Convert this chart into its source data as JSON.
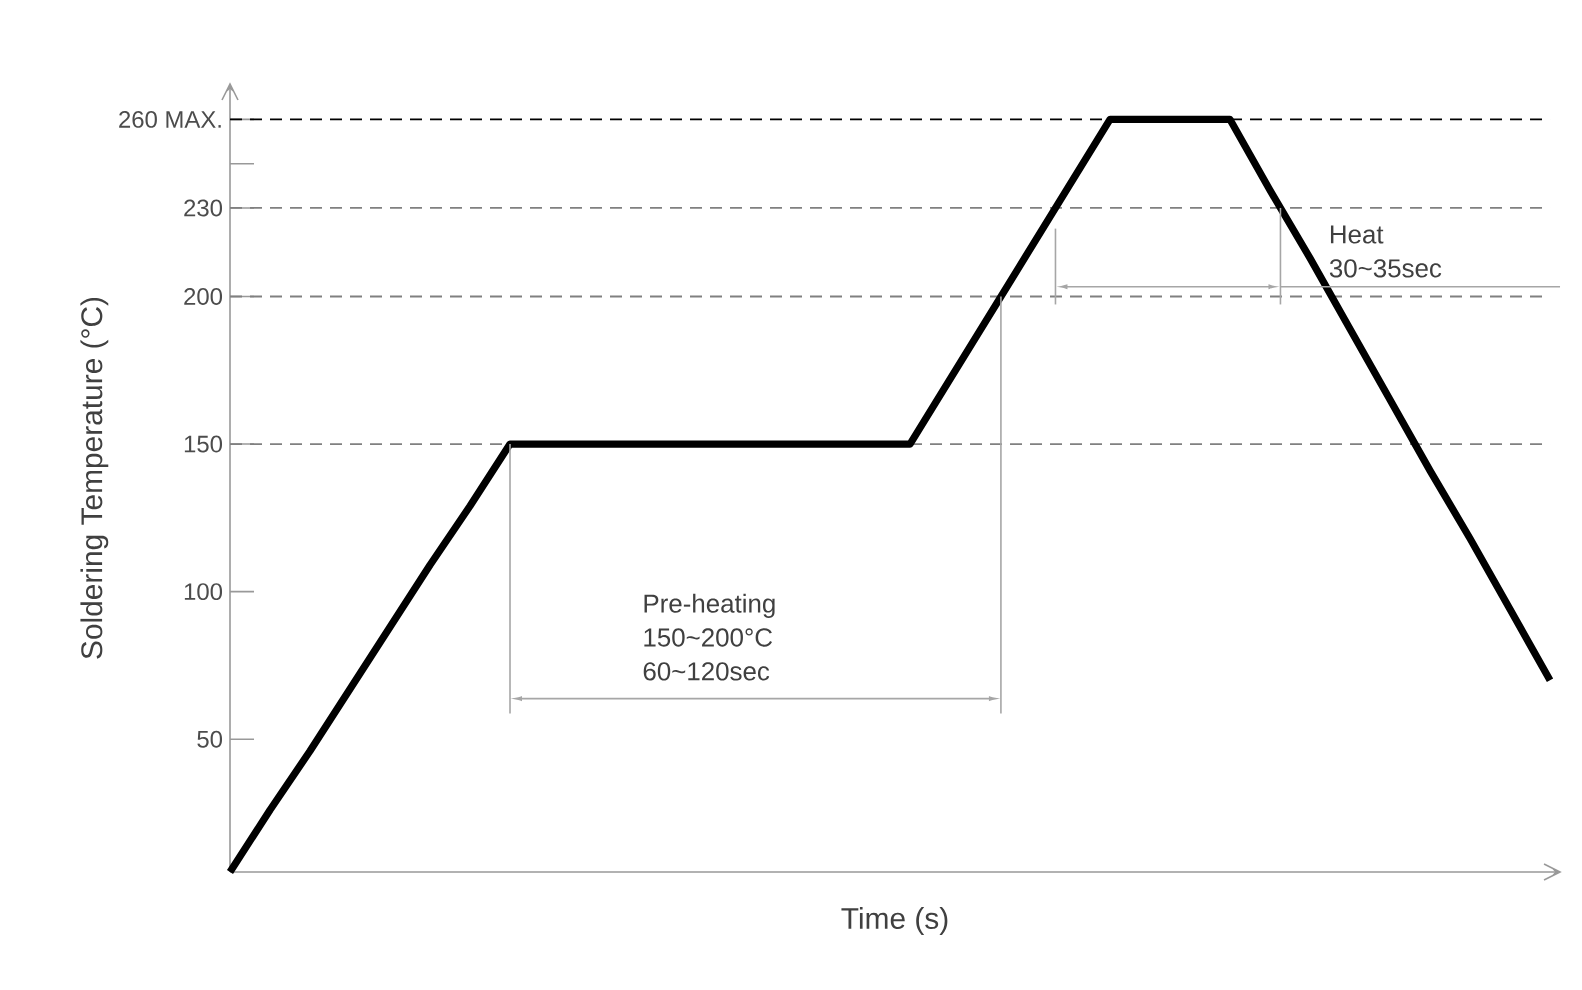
{
  "chart_data": {
    "type": "line",
    "xlabel": "Time (s)",
    "ylabel": "Soldering Temperature (°C)",
    "categories": [
      null,
      null,
      null,
      null,
      null,
      null,
      null,
      null,
      null,
      null,
      null,
      null,
      null,
      null,
      null,
      null,
      null,
      null,
      null,
      null,
      null,
      null,
      null,
      null,
      null,
      null,
      null,
      null,
      null,
      null,
      null,
      null,
      null,
      null
    ],
    "series": [
      {
        "color": "#000000",
        "values": [
          5,
          26,
          46,
          67,
          88,
          109,
          129,
          150,
          150,
          150,
          150,
          150,
          150,
          150,
          150,
          150,
          150,
          150,
          172,
          194,
          216,
          238,
          260,
          260,
          260,
          260,
          236,
          213,
          189,
          165,
          141,
          118,
          94,
          70
        ]
      }
    ],
    "ylim": [
      5,
      272
    ],
    "yticks": [
      50,
      100,
      150,
      200,
      230,
      {
        "value": 245,
        "label": null
      },
      {
        "value": 260,
        "label": "260  MAX."
      }
    ],
    "tick_labels": "y",
    "marker": "none",
    "line_style": "solid",
    "grid": false,
    "ref_lines": [
      {
        "axis": "y",
        "value": 150,
        "color": "#808080",
        "line_style": "dashed"
      },
      {
        "axis": "y",
        "value": 200,
        "color": "#808080",
        "line_style": "dashed"
      },
      {
        "axis": "y",
        "value": 230,
        "color": "#808080",
        "line_style": "dashed"
      },
      {
        "axis": "y",
        "value": 260,
        "color": "#000000",
        "line_style": "dashed"
      }
    ],
    "annotations": [
      "Pre-heating",
      "150~200°C",
      "60~120sec",
      "Heat",
      "30~35sec"
    ]
  }
}
